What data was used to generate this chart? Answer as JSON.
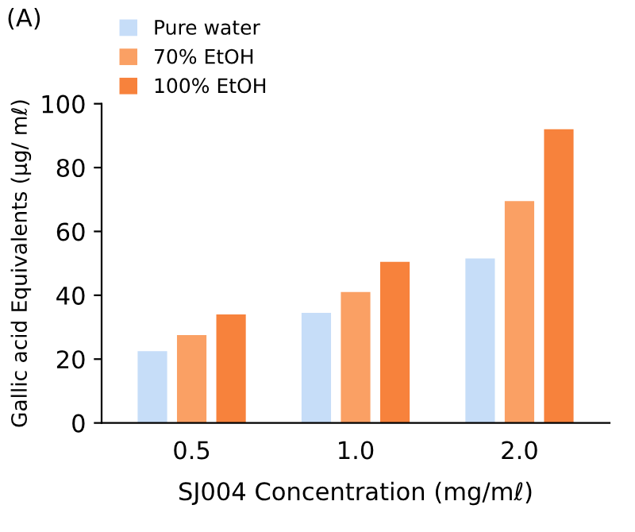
{
  "chart_data": {
    "type": "bar",
    "xlabel": "SJ004 Concentration (mg/mℓ)",
    "ylabel": "Gallic acid Equivalents (μg/ mℓ)",
    "annotations": [
      "(A)"
    ],
    "categories": [
      "0.5",
      "1.0",
      "2.0"
    ],
    "series": [
      {
        "name": "Pure water",
        "color": "#c6ddf8",
        "values": [
          22.5,
          34.5,
          51.5
        ]
      },
      {
        "name": "70% EtOH",
        "color": "#faa064",
        "values": [
          27.5,
          41,
          69.5
        ]
      },
      {
        "name": "100% EtOH",
        "color": "#f7823c",
        "values": [
          34,
          50.5,
          92
        ]
      }
    ],
    "ylim": [
      0,
      100
    ],
    "yticks": [
      0,
      20,
      40,
      60,
      80,
      100
    ],
    "grid": false,
    "legend": "top left"
  }
}
